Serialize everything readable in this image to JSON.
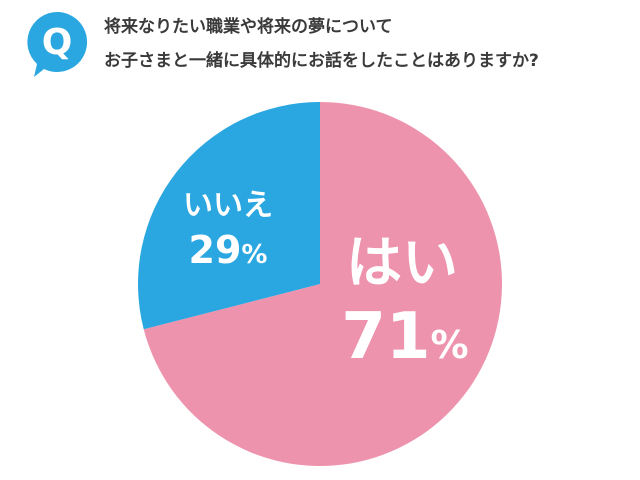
{
  "question": {
    "badge_letter": "Q",
    "line1": "将来なりたい職業や将来の夢について",
    "line2": "お子さまと一緒に具体的にお話をしたことはありますか?"
  },
  "colors": {
    "badge": "#2aa6e0",
    "yes": "#ee93ad",
    "no": "#2aa6e0"
  },
  "chart_data": {
    "type": "pie",
    "start": "12 o'clock, clockwise",
    "slices": [
      {
        "label": "はい",
        "value": 71,
        "value_text": "71",
        "unit": "%",
        "color": "#ee93ad"
      },
      {
        "label": "いいえ",
        "value": 29,
        "value_text": "29",
        "unit": "%",
        "color": "#2aa6e0"
      }
    ]
  }
}
